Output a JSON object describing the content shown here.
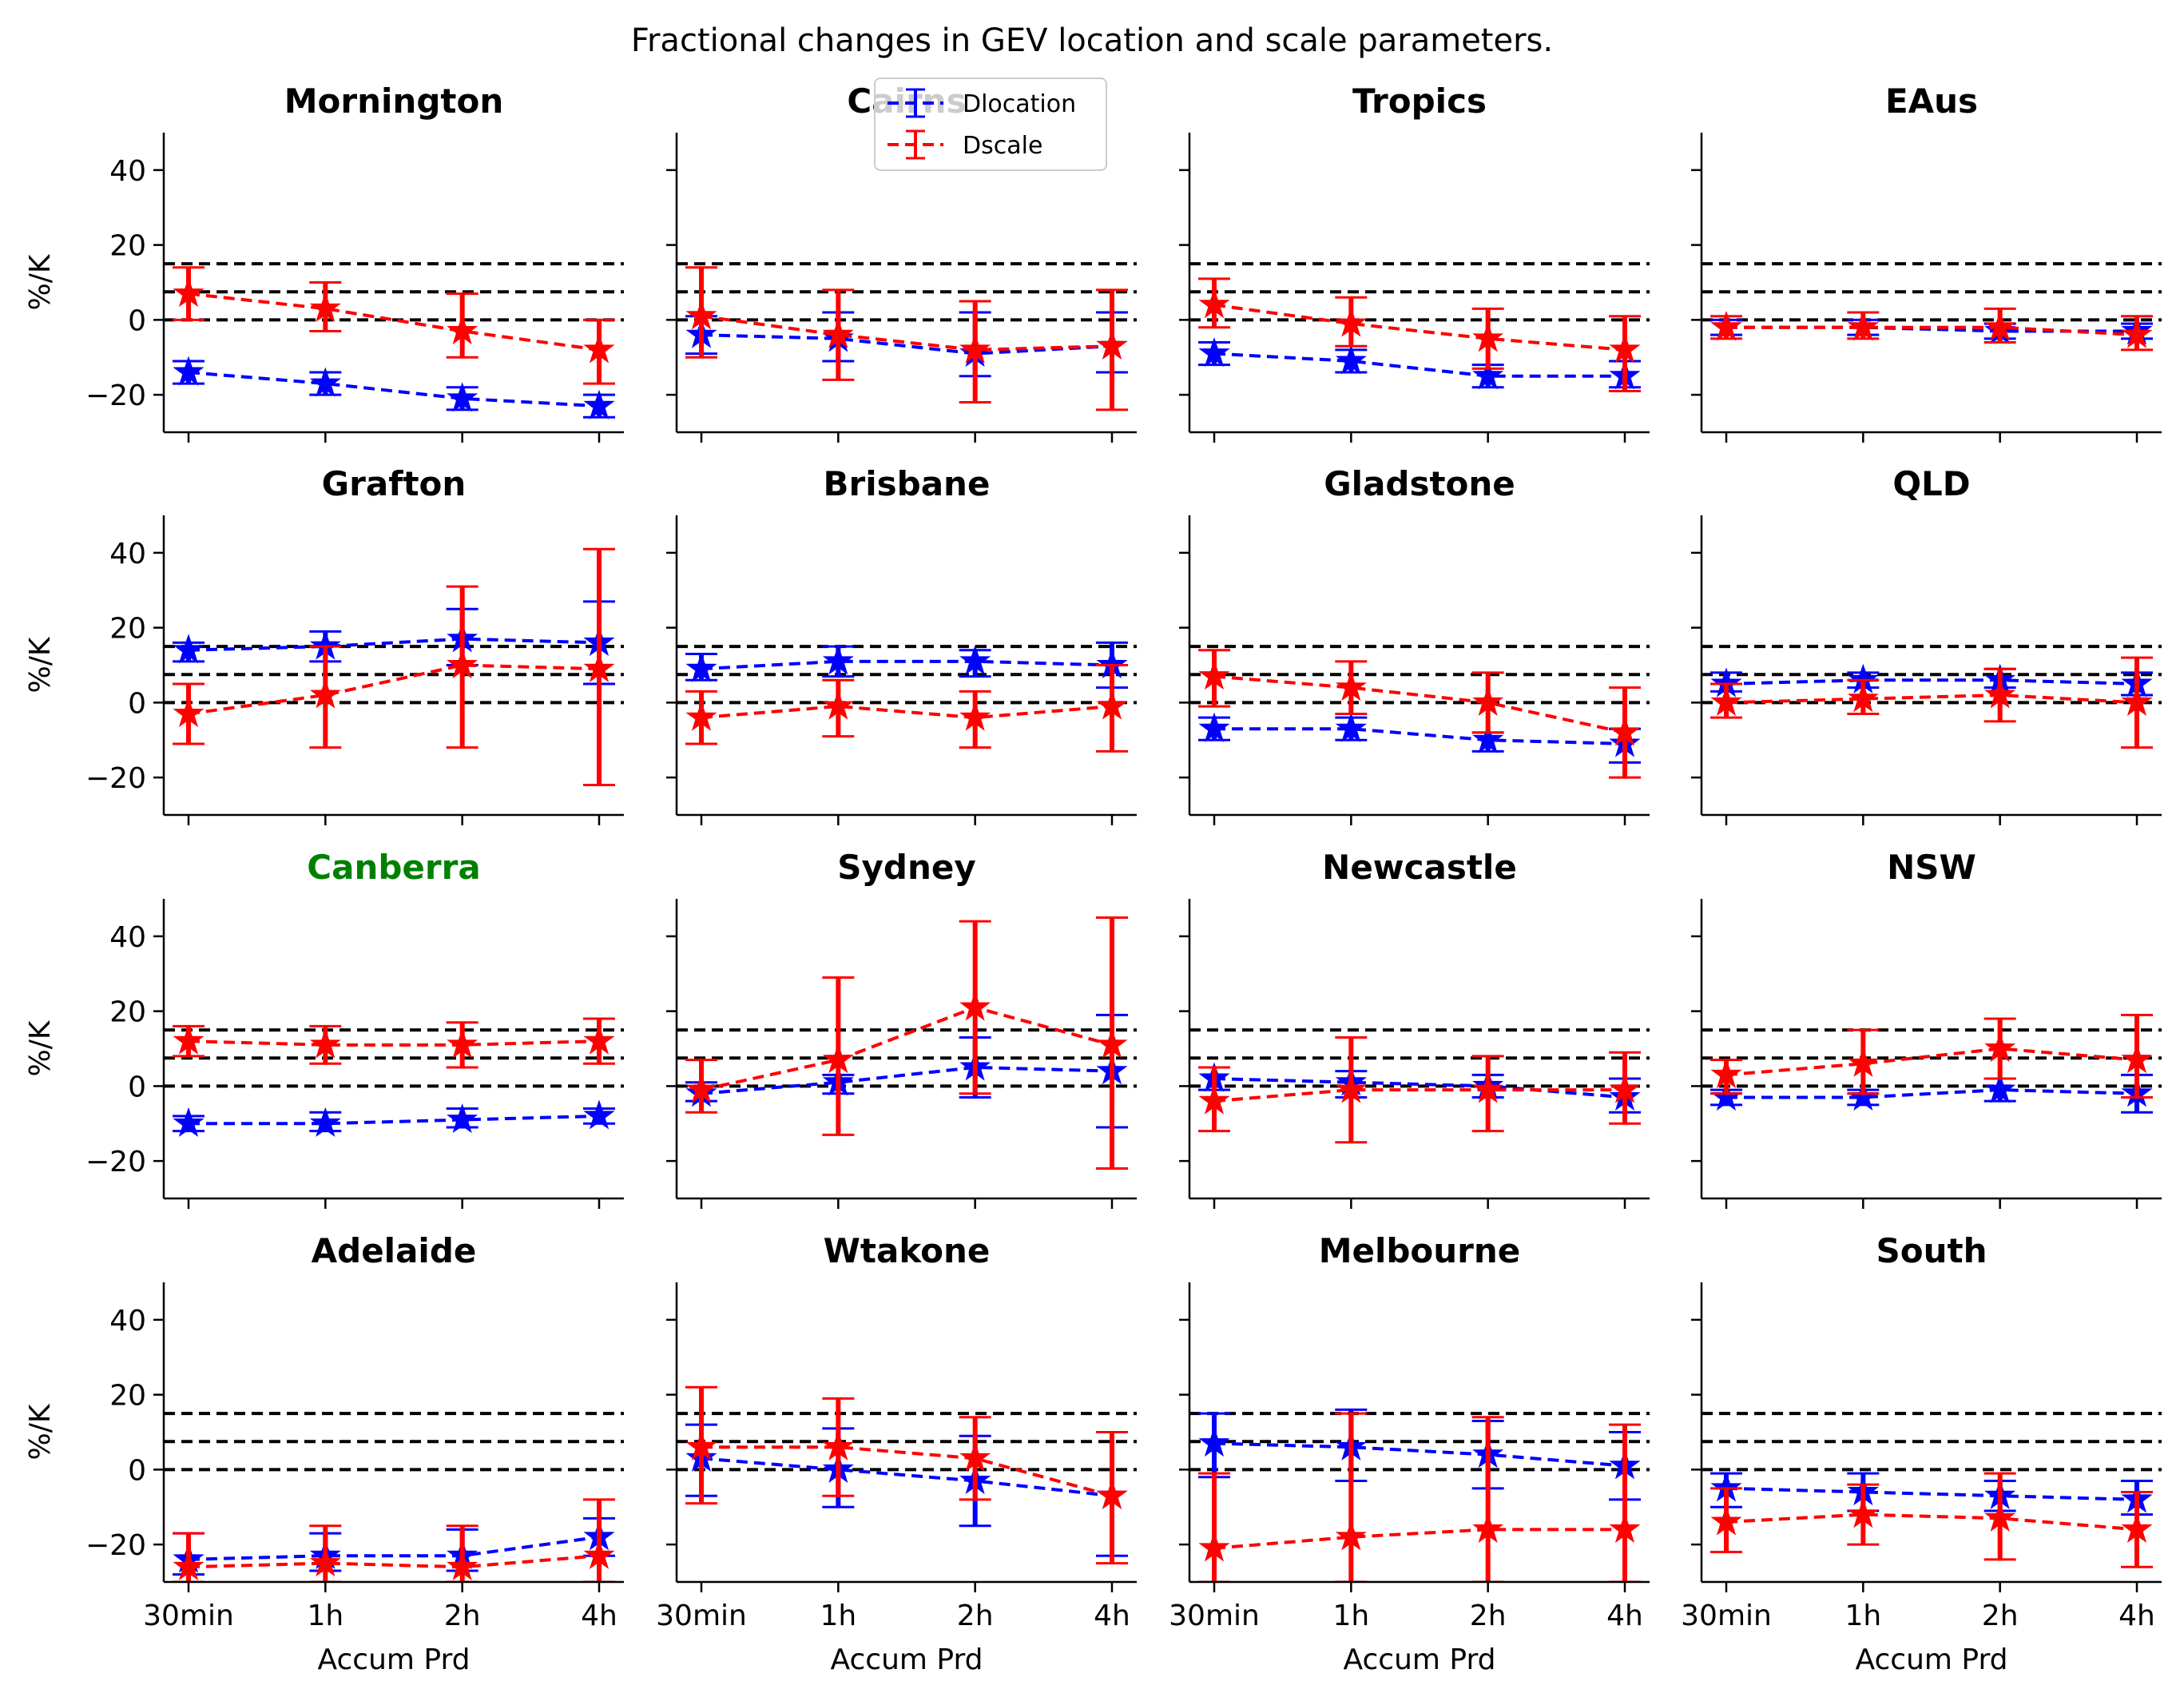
{
  "title": "Fractional changes in GEV location and scale parameters.",
  "xlabel": "Accum Prd",
  "ylabel": "%/K",
  "colors": {
    "location": "#0000ff",
    "scale": "#ff0000",
    "reference": "#000000",
    "highlight": "#008000"
  },
  "chart_data": {
    "type": "line",
    "categories": [
      "30min",
      "1h",
      "2h",
      "4h"
    ],
    "ylim": [
      -30,
      50
    ],
    "yticks": [
      -20,
      0,
      20,
      40
    ],
    "reference_lines": [
      0,
      7.5,
      15
    ],
    "legend": {
      "placement": "top-center",
      "entries": [
        "Dlocation",
        "Dscale"
      ]
    },
    "grid": false,
    "panels": [
      {
        "title": "Mornington",
        "highlight": false,
        "location": {
          "values": [
            -14,
            -17,
            -21,
            -23
          ],
          "lower": [
            -17,
            -20,
            -24,
            -26
          ],
          "upper": [
            -11,
            -14,
            -18,
            -20
          ]
        },
        "scale": {
          "values": [
            7,
            3,
            -3,
            -8
          ],
          "lower": [
            0,
            -3,
            -10,
            -17
          ],
          "upper": [
            14,
            10,
            7,
            0
          ]
        }
      },
      {
        "title": "Cairns",
        "highlight": false,
        "location": {
          "values": [
            -4,
            -5,
            -9,
            -7
          ],
          "lower": [
            -9,
            -11,
            -15,
            -14
          ],
          "upper": [
            1,
            2,
            2,
            2
          ]
        },
        "scale": {
          "values": [
            1,
            -4,
            -8,
            -7
          ],
          "lower": [
            -10,
            -16,
            -22,
            -24
          ],
          "upper": [
            14,
            8,
            5,
            8
          ]
        }
      },
      {
        "title": "Tropics",
        "highlight": false,
        "location": {
          "values": [
            -9,
            -11,
            -15,
            -15
          ],
          "lower": [
            -12,
            -14,
            -18,
            -18
          ],
          "upper": [
            -6,
            -8,
            -12,
            -11
          ]
        },
        "scale": {
          "values": [
            4,
            -1,
            -5,
            -8
          ],
          "lower": [
            -2,
            -7,
            -13,
            -19
          ],
          "upper": [
            11,
            6,
            3,
            1
          ]
        }
      },
      {
        "title": "EAus",
        "highlight": false,
        "location": {
          "values": [
            -2,
            -2,
            -3,
            -3
          ],
          "lower": [
            -4,
            -4,
            -5,
            -5
          ],
          "upper": [
            0,
            0,
            -1,
            -1
          ]
        },
        "scale": {
          "values": [
            -2,
            -2,
            -2,
            -4
          ],
          "lower": [
            -5,
            -5,
            -6,
            -8
          ],
          "upper": [
            1,
            2,
            3,
            1
          ]
        }
      },
      {
        "title": "Grafton",
        "highlight": false,
        "location": {
          "values": [
            14,
            15,
            17,
            16
          ],
          "lower": [
            11,
            11,
            10,
            5
          ],
          "upper": [
            16,
            19,
            25,
            27
          ]
        },
        "scale": {
          "values": [
            -3,
            2,
            10,
            9
          ],
          "lower": [
            -11,
            -12,
            -12,
            -22
          ],
          "upper": [
            5,
            15,
            31,
            41
          ]
        }
      },
      {
        "title": "Brisbane",
        "highlight": false,
        "location": {
          "values": [
            9,
            11,
            11,
            10
          ],
          "lower": [
            6,
            7,
            7,
            4
          ],
          "upper": [
            13,
            15,
            14,
            16
          ]
        },
        "scale": {
          "values": [
            -4,
            -1,
            -4,
            -1
          ],
          "lower": [
            -11,
            -9,
            -12,
            -13
          ],
          "upper": [
            3,
            6,
            3,
            10
          ]
        }
      },
      {
        "title": "Gladstone",
        "highlight": false,
        "location": {
          "values": [
            -7,
            -7,
            -10,
            -11
          ],
          "lower": [
            -10,
            -10,
            -13,
            -16
          ],
          "upper": [
            -4,
            -4,
            -8,
            -7
          ]
        },
        "scale": {
          "values": [
            7,
            4,
            0,
            -8
          ],
          "lower": [
            -1,
            -3,
            -8,
            -20
          ],
          "upper": [
            14,
            11,
            8,
            4
          ]
        }
      },
      {
        "title": "QLD",
        "highlight": false,
        "location": {
          "values": [
            5,
            6,
            6,
            5
          ],
          "lower": [
            3,
            4,
            4,
            2
          ],
          "upper": [
            8,
            8,
            9,
            8
          ]
        },
        "scale": {
          "values": [
            0,
            1,
            2,
            0
          ],
          "lower": [
            -4,
            -3,
            -5,
            -12
          ],
          "upper": [
            5,
            6,
            9,
            12
          ]
        }
      },
      {
        "title": "Canberra",
        "highlight": true,
        "location": {
          "values": [
            -10,
            -10,
            -9,
            -8
          ],
          "lower": [
            -12,
            -12,
            -11,
            -10
          ],
          "upper": [
            -8,
            -7,
            -6,
            -6
          ]
        },
        "scale": {
          "values": [
            12,
            11,
            11,
            12
          ],
          "lower": [
            8,
            6,
            5,
            6
          ],
          "upper": [
            16,
            16,
            17,
            18
          ]
        }
      },
      {
        "title": "Sydney",
        "highlight": false,
        "location": {
          "values": [
            -2,
            1,
            5,
            4
          ],
          "lower": [
            -4,
            -2,
            -3,
            -11
          ],
          "upper": [
            1,
            3,
            13,
            19
          ]
        },
        "scale": {
          "values": [
            -1,
            7,
            21,
            11
          ],
          "lower": [
            -7,
            -13,
            -2,
            -22
          ],
          "upper": [
            7,
            29,
            44,
            45
          ]
        }
      },
      {
        "title": "Newcastle",
        "highlight": false,
        "location": {
          "values": [
            2,
            1,
            0,
            -3
          ],
          "lower": [
            -1,
            -3,
            -3,
            -7
          ],
          "upper": [
            5,
            4,
            3,
            2
          ]
        },
        "scale": {
          "values": [
            -4,
            -1,
            -1,
            -1
          ],
          "lower": [
            -12,
            -15,
            -12,
            -10
          ],
          "upper": [
            5,
            13,
            8,
            9
          ]
        }
      },
      {
        "title": "NSW",
        "highlight": false,
        "location": {
          "values": [
            -3,
            -3,
            -1,
            -2
          ],
          "lower": [
            -5,
            -5,
            -4,
            -7
          ],
          "upper": [
            -1,
            -1,
            2,
            3
          ]
        },
        "scale": {
          "values": [
            3,
            6,
            10,
            7
          ],
          "lower": [
            -2,
            -2,
            2,
            -3
          ],
          "upper": [
            7,
            15,
            18,
            19
          ]
        }
      },
      {
        "title": "Adelaide",
        "highlight": false,
        "location": {
          "values": [
            -24,
            -23,
            -23,
            -18
          ],
          "lower": [
            -28,
            -27,
            -27,
            -23
          ],
          "upper": [
            -17,
            -17,
            -16,
            -13
          ]
        },
        "scale": {
          "values": [
            -26,
            -25,
            -26,
            -23
          ],
          "lower": [
            -30,
            -30,
            -30,
            -30
          ],
          "upper": [
            -17,
            -15,
            -15,
            -8
          ]
        }
      },
      {
        "title": "Wtakone",
        "highlight": false,
        "location": {
          "values": [
            3,
            0,
            -3,
            -7
          ],
          "lower": [
            -7,
            -10,
            -15,
            -23
          ],
          "upper": [
            12,
            11,
            9,
            10
          ]
        },
        "scale": {
          "values": [
            6,
            6,
            3,
            -7
          ],
          "lower": [
            -9,
            -7,
            -8,
            -25
          ],
          "upper": [
            22,
            19,
            14,
            10
          ]
        }
      },
      {
        "title": "Melbourne",
        "highlight": false,
        "location": {
          "values": [
            7,
            6,
            4,
            1
          ],
          "lower": [
            -2,
            -3,
            -5,
            -8
          ],
          "upper": [
            15,
            16,
            13,
            10
          ]
        },
        "scale": {
          "values": [
            -21,
            -18,
            -16,
            -16
          ],
          "lower": [
            -30,
            -30,
            -30,
            -30
          ],
          "upper": [
            -1,
            15,
            14,
            12
          ]
        }
      },
      {
        "title": "South",
        "highlight": false,
        "location": {
          "values": [
            -5,
            -6,
            -7,
            -8
          ],
          "lower": [
            -10,
            -11,
            -11,
            -12
          ],
          "upper": [
            -1,
            -1,
            -3,
            -3
          ]
        },
        "scale": {
          "values": [
            -14,
            -12,
            -13,
            -16
          ],
          "lower": [
            -22,
            -20,
            -24,
            -26
          ],
          "upper": [
            -5,
            -4,
            -1,
            -6
          ]
        }
      }
    ]
  }
}
